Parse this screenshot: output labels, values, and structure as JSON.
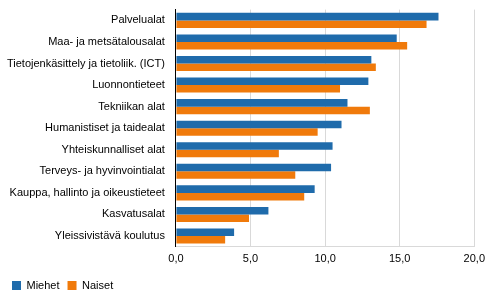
{
  "chart_data": {
    "type": "bar",
    "orientation": "horizontal",
    "categories": [
      "Palvelualat",
      "Maa- ja metsätalousalat",
      "Tietojenkäsittely ja tietoliik. (ICT)",
      "Luonnontieteet",
      "Tekniikan alat",
      "Humanistiset ja taidealat",
      "Yhteiskunnalliset alat",
      "Terveys- ja hyvinvointialat",
      "Kauppa, hallinto ja oikeustieteet",
      "Kasvatusalat",
      "Yleissivistävä koulutus"
    ],
    "series": [
      {
        "name": "Miehet",
        "color": "#1f6bab",
        "values": [
          17.6,
          14.8,
          13.1,
          12.9,
          11.5,
          11.1,
          10.5,
          10.4,
          9.3,
          6.2,
          3.9
        ]
      },
      {
        "name": "Naiset",
        "color": "#f07a0b",
        "values": [
          16.8,
          15.5,
          13.4,
          11.0,
          13.0,
          9.5,
          6.9,
          8.0,
          8.6,
          4.9,
          3.3
        ]
      }
    ],
    "xlim": [
      0,
      20
    ],
    "xticks": [
      {
        "value": 0,
        "label": "0,0"
      },
      {
        "value": 5,
        "label": "5,0"
      },
      {
        "value": 10,
        "label": "10,0"
      },
      {
        "value": 15,
        "label": "15,0"
      },
      {
        "value": 20,
        "label": "20,0"
      }
    ],
    "grid": true,
    "legend": "bottom-left"
  }
}
